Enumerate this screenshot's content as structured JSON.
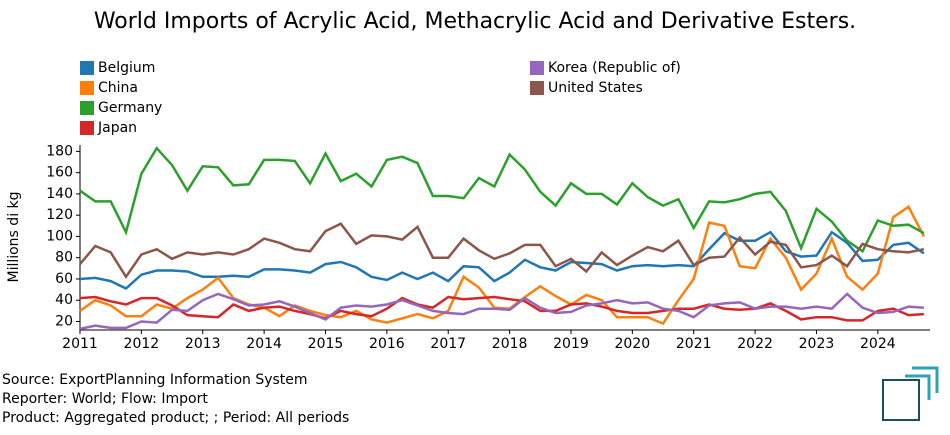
{
  "chart_data": {
    "type": "line",
    "title": "World Imports of Acrylic Acid, Methacrylic Acid and Derivative Esters.",
    "y_label": "Millions di kg",
    "xlim": [
      2011,
      2024.85
    ],
    "xticks": [
      2011,
      2012,
      2013,
      2014,
      2015,
      2016,
      2017,
      2018,
      2019,
      2020,
      2021,
      2022,
      2023,
      2024
    ],
    "ylim": [
      12,
      186
    ],
    "yticks": [
      20,
      40,
      60,
      80,
      100,
      120,
      140,
      160,
      180
    ],
    "x": [
      2011,
      2011.25,
      2011.5,
      2011.75,
      2012,
      2012.25,
      2012.5,
      2012.75,
      2013,
      2013.25,
      2013.5,
      2013.75,
      2014,
      2014.25,
      2014.5,
      2014.75,
      2015,
      2015.25,
      2015.5,
      2015.75,
      2016,
      2016.25,
      2016.5,
      2016.75,
      2017,
      2017.25,
      2017.5,
      2017.75,
      2018,
      2018.25,
      2018.5,
      2018.75,
      2019,
      2019.25,
      2019.5,
      2019.75,
      2020,
      2020.25,
      2020.5,
      2020.75,
      2021,
      2021.25,
      2021.5,
      2021.75,
      2022,
      2022.25,
      2022.5,
      2022.75,
      2023,
      2023.25,
      2023.5,
      2023.75,
      2024,
      2024.25,
      2024.5,
      2024.75
    ],
    "series": [
      {
        "name": "Belgium",
        "color": "#1f77b4",
        "values": [
          60,
          61,
          58,
          51,
          64,
          68,
          68,
          67,
          62,
          62,
          63,
          62,
          69,
          69,
          68,
          66,
          74,
          76,
          71,
          62,
          59,
          66,
          60,
          66,
          58,
          72,
          71,
          58,
          66,
          78,
          71,
          68,
          76,
          75,
          74,
          68,
          72,
          73,
          72,
          73,
          72,
          88,
          103,
          96,
          96,
          104,
          86,
          81,
          82,
          104,
          94,
          77,
          78,
          92,
          94,
          84
        ]
      },
      {
        "name": "China",
        "color": "#ff7f0e",
        "values": [
          30,
          40,
          35,
          25,
          25,
          36,
          32,
          42,
          50,
          61,
          42,
          36,
          33,
          25,
          35,
          30,
          26,
          24,
          30,
          22,
          19,
          23,
          27,
          23,
          30,
          62,
          52,
          33,
          32,
          43,
          53,
          44,
          36,
          45,
          40,
          24,
          24,
          24,
          18,
          40,
          60,
          113,
          110,
          72,
          70,
          98,
          80,
          50,
          65,
          98,
          62,
          50,
          65,
          118,
          128,
          100
        ]
      },
      {
        "name": "Germany",
        "color": "#2ca02c",
        "values": [
          143,
          133,
          133,
          104,
          159,
          183,
          167,
          143,
          166,
          165,
          148,
          149,
          172,
          172,
          171,
          150,
          178,
          152,
          159,
          147,
          172,
          175,
          169,
          138,
          138,
          136,
          155,
          147,
          177,
          163,
          142,
          129,
          150,
          140,
          140,
          130,
          150,
          137,
          129,
          135,
          108,
          133,
          132,
          135,
          140,
          142,
          124,
          89,
          126,
          114,
          96,
          86,
          115,
          110,
          111,
          103
        ]
      },
      {
        "name": "Japan",
        "color": "#d62728",
        "values": [
          42,
          43,
          39,
          36,
          42,
          42,
          35,
          26,
          25,
          24,
          36,
          30,
          33,
          34,
          30,
          27,
          23,
          30,
          27,
          25,
          32,
          42,
          36,
          33,
          43,
          41,
          42,
          43,
          41,
          39,
          30,
          30,
          36,
          37,
          34,
          30,
          28,
          28,
          30,
          32,
          32,
          36,
          32,
          31,
          32,
          37,
          30,
          22,
          24,
          24,
          21,
          21,
          30,
          32,
          26,
          27
        ]
      },
      {
        "name": "Korea (Republic of)",
        "color": "#9467bd",
        "values": [
          13,
          16,
          14,
          14,
          20,
          19,
          31,
          30,
          40,
          46,
          41,
          35,
          36,
          39,
          34,
          28,
          22,
          33,
          35,
          34,
          36,
          40,
          35,
          30,
          28,
          27,
          32,
          32,
          31,
          42,
          33,
          28,
          29,
          35,
          37,
          40,
          37,
          38,
          32,
          30,
          24,
          35,
          37,
          38,
          32,
          34,
          34,
          32,
          34,
          32,
          46,
          33,
          28,
          29,
          34,
          33
        ]
      },
      {
        "name": "United States",
        "color": "#8c564b",
        "values": [
          74,
          91,
          85,
          62,
          83,
          88,
          79,
          85,
          83,
          85,
          83,
          88,
          98,
          94,
          88,
          86,
          105,
          112,
          93,
          101,
          100,
          97,
          109,
          80,
          80,
          98,
          87,
          79,
          84,
          92,
          92,
          72,
          79,
          67,
          85,
          73,
          82,
          90,
          86,
          96,
          73,
          80,
          81,
          99,
          83,
          95,
          92,
          71,
          73,
          82,
          72,
          93,
          88,
          86,
          85,
          88
        ]
      }
    ],
    "footer": [
      "Source: ExportPlanning Information System",
      "Reporter: World; Flow: Import",
      "Product: Aggregated product; ; Period: All periods"
    ]
  }
}
